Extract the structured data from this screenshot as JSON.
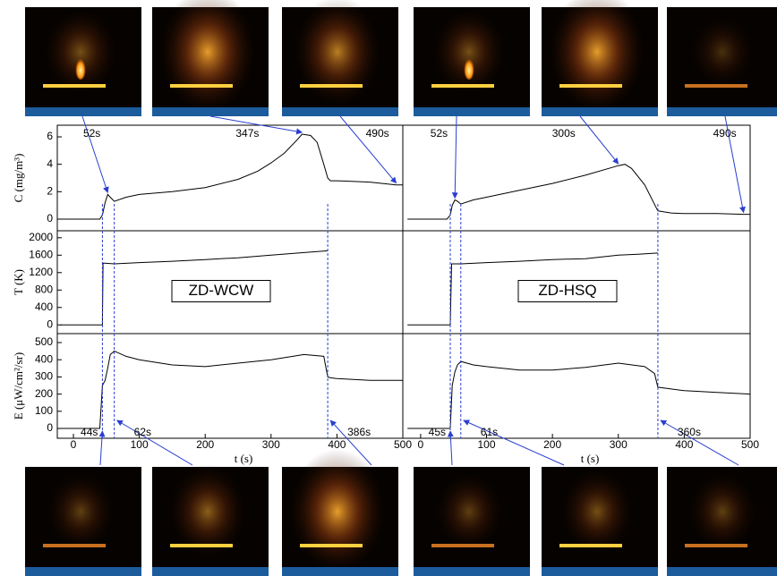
{
  "chart_data": [
    {
      "type": "line",
      "y_label": "C (mg/m³)",
      "color": "#000000",
      "marker_color": "#2a3fd0",
      "x": [
        -20,
        0,
        40,
        44,
        48,
        52,
        56,
        62,
        80,
        100,
        150,
        200,
        250,
        280,
        300,
        320,
        340,
        347,
        360,
        370,
        380,
        386,
        390,
        400,
        450,
        490,
        500
      ],
      "values": [
        0,
        0,
        0,
        0.3,
        1.2,
        1.8,
        1.6,
        1.3,
        1.6,
        1.8,
        2.0,
        2.3,
        2.9,
        3.5,
        4.1,
        4.8,
        5.8,
        6.2,
        6.1,
        5.6,
        4.0,
        3.0,
        2.8,
        2.8,
        2.7,
        2.5,
        2.5
      ],
      "xlim": [
        -24.5,
        500
      ],
      "ylim": [
        -0.85,
        6.85
      ],
      "yticks": [
        0,
        2,
        4,
        6
      ],
      "annotations": [
        {
          "x": 52,
          "label": "52s"
        },
        {
          "x": 347,
          "label": "347s"
        },
        {
          "x": 490,
          "label": "490s"
        }
      ]
    },
    {
      "type": "line",
      "color": "#000000",
      "marker_color": "#2a3fd0",
      "x": [
        -20,
        0,
        40,
        45,
        48,
        52,
        56,
        61,
        80,
        100,
        150,
        200,
        250,
        300,
        310,
        320,
        340,
        360,
        380,
        400,
        450,
        490,
        500
      ],
      "values": [
        0,
        0,
        0,
        0.3,
        1.0,
        1.4,
        1.3,
        1.1,
        1.4,
        1.6,
        2.1,
        2.6,
        3.2,
        3.9,
        4.0,
        3.7,
        2.5,
        0.6,
        0.45,
        0.4,
        0.4,
        0.35,
        0.35
      ],
      "xlim": [
        -27,
        500
      ],
      "ylim": [
        -0.85,
        6.85
      ],
      "annotations": [
        {
          "x": 52,
          "label": "52s"
        },
        {
          "x": 300,
          "label": "300s"
        },
        {
          "x": 490,
          "label": "490s"
        }
      ]
    },
    {
      "type": "line",
      "y_label": "T (K)",
      "color": "#000000",
      "label": "ZD-WCW",
      "x": [
        -20,
        0,
        40,
        44,
        45,
        62,
        100,
        150,
        200,
        250,
        300,
        350,
        386
      ],
      "values": [
        0,
        0,
        0,
        0,
        1420,
        1400,
        1430,
        1460,
        1500,
        1540,
        1600,
        1660,
        1700
      ],
      "xlim": [
        -24.5,
        500
      ],
      "ylim": [
        -200,
        2160
      ],
      "yticks": [
        0,
        400,
        800,
        1200,
        1600,
        2000
      ]
    },
    {
      "type": "line",
      "color": "#000000",
      "label": "ZD-HSQ",
      "x": [
        -20,
        0,
        40,
        45,
        47,
        61,
        100,
        150,
        200,
        250,
        300,
        330,
        360
      ],
      "values": [
        0,
        0,
        0,
        0,
        1400,
        1400,
        1430,
        1460,
        1500,
        1520,
        1600,
        1620,
        1650
      ],
      "xlim": [
        -27,
        500
      ],
      "ylim": [
        -200,
        2160
      ]
    },
    {
      "type": "line",
      "y_label": "E (μW/cm²/sr)",
      "x_label": "t (s)",
      "color": "#000000",
      "marker_color": "#2a3fd0",
      "x": [
        -20,
        0,
        40,
        44,
        48,
        52,
        56,
        62,
        80,
        100,
        150,
        200,
        250,
        300,
        350,
        380,
        386,
        390,
        400,
        450,
        500
      ],
      "values": [
        0,
        0,
        0,
        250,
        280,
        350,
        430,
        450,
        420,
        400,
        370,
        360,
        380,
        400,
        430,
        420,
        300,
        295,
        290,
        280,
        280
      ],
      "xlim": [
        -24.5,
        500
      ],
      "ylim": [
        -57,
        552
      ],
      "yticks": [
        0,
        100,
        200,
        300,
        400,
        500
      ],
      "xticks": [
        0,
        100,
        200,
        300,
        400,
        500
      ],
      "annotations": [
        {
          "x": 44,
          "label": "44s"
        },
        {
          "x": 62,
          "label": "62s"
        },
        {
          "x": 386,
          "label": "386s"
        }
      ]
    },
    {
      "type": "line",
      "x_label": "t (s)",
      "color": "#000000",
      "marker_color": "#2a3fd0",
      "x": [
        -20,
        0,
        40,
        45,
        48,
        52,
        56,
        61,
        80,
        100,
        150,
        200,
        250,
        300,
        340,
        355,
        360,
        380,
        400,
        450,
        500
      ],
      "values": [
        0,
        0,
        0,
        0,
        250,
        330,
        370,
        390,
        370,
        360,
        340,
        340,
        355,
        380,
        360,
        320,
        240,
        230,
        220,
        210,
        200
      ],
      "xlim": [
        -27,
        500
      ],
      "ylim": [
        -57,
        552
      ],
      "xticks": [
        0,
        100,
        200,
        300,
        400,
        500
      ],
      "annotations": [
        {
          "x": 45,
          "label": "45s"
        },
        {
          "x": 61,
          "label": "61s"
        },
        {
          "x": 360,
          "label": "360s"
        }
      ]
    }
  ]
}
